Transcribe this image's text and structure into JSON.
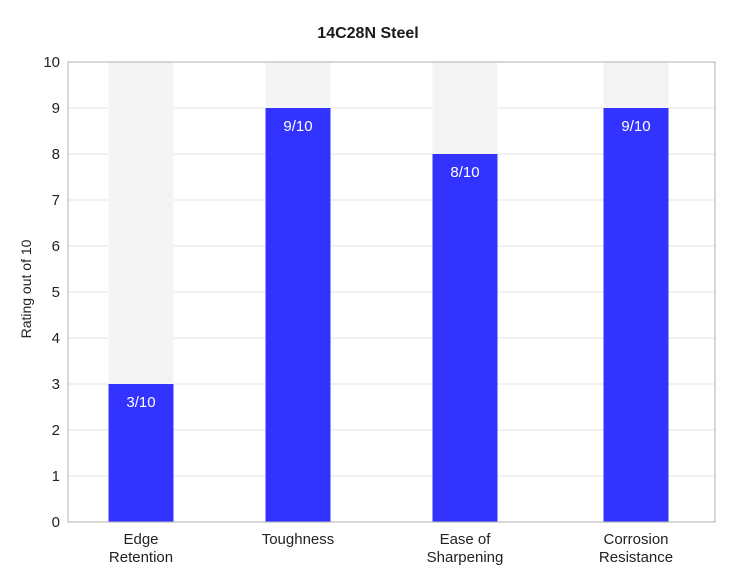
{
  "chart_data": {
    "type": "bar",
    "title": "14C28N Steel",
    "xlabel": "",
    "ylabel": "Rating out of 10",
    "ylim": [
      0,
      10
    ],
    "yticks": [
      0,
      1,
      2,
      3,
      4,
      5,
      6,
      7,
      8,
      9,
      10
    ],
    "max_value": 10,
    "categories": [
      [
        "Edge",
        "Retention"
      ],
      [
        "Toughness"
      ],
      [
        "Ease of",
        "Sharpening"
      ],
      [
        "Corrosion",
        "Resistance"
      ]
    ],
    "values": [
      3,
      9,
      8,
      9
    ],
    "data_labels": [
      "3/10",
      "9/10",
      "8/10",
      "9/10"
    ],
    "grid": true,
    "legend": "none",
    "colors": {
      "bar": "#3333ff",
      "track": "#f4f4f4",
      "grid": "#e6e6e6",
      "axis": "#b0b0b0"
    }
  }
}
